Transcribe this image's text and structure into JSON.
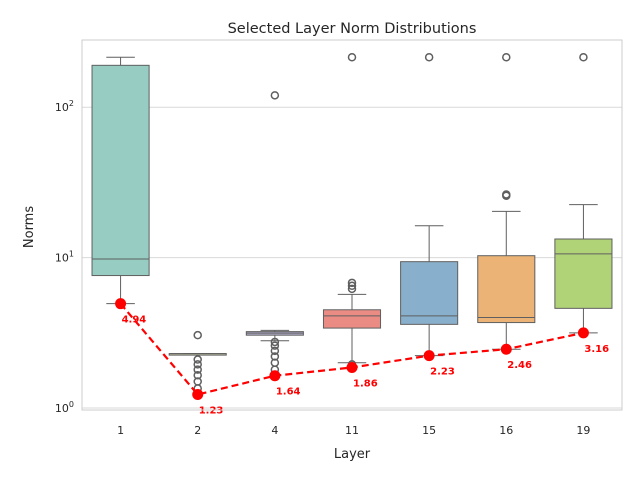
{
  "chart_data": {
    "type": "box",
    "title": "Selected Layer Norm Distributions",
    "xlabel": "Layer",
    "ylabel": "Norms",
    "yscale": "log",
    "ylim": [
      0.97,
      280
    ],
    "grid": true,
    "categories": [
      "1",
      "2",
      "4",
      "11",
      "15",
      "16",
      "19"
    ],
    "y_ticks": [
      {
        "value": 1,
        "label": "10^0"
      },
      {
        "value": 10,
        "label": "10^1"
      },
      {
        "value": 100,
        "label": "10^2"
      }
    ],
    "boxes": [
      {
        "layer": "1",
        "color": "#96ccc2",
        "whisker_low": 4.94,
        "q1": 7.6,
        "median": 9.8,
        "q3": 190,
        "whisker_high": 215,
        "outliers": []
      },
      {
        "layer": "2",
        "color": "#dfdfb2",
        "whisker_low": 2.3,
        "q1": 2.3,
        "median": 2.3,
        "q3": 2.3,
        "whisker_high": 2.3,
        "outliers": [
          1.23,
          1.35,
          1.5,
          1.65,
          1.8,
          1.95,
          2.1,
          3.05
        ]
      },
      {
        "layer": "4",
        "color": "#b5b0cf",
        "whisker_low": 2.8,
        "q1": 3.05,
        "median": 3.15,
        "q3": 3.22,
        "whisker_high": 3.28,
        "outliers": [
          1.64,
          1.8,
          2.0,
          2.2,
          2.4,
          2.6,
          2.75,
          120
        ]
      },
      {
        "layer": "11",
        "color": "#ea8c83",
        "whisker_low": 2.0,
        "q1": 3.4,
        "median": 4.1,
        "q3": 4.5,
        "whisker_high": 5.7,
        "outliers": [
          1.86,
          1.95,
          6.2,
          6.5,
          6.8,
          215
        ]
      },
      {
        "layer": "15",
        "color": "#88afcb",
        "whisker_low": 2.23,
        "q1": 3.6,
        "median": 4.1,
        "q3": 9.4,
        "whisker_high": 16.3,
        "outliers": [
          215
        ]
      },
      {
        "layer": "16",
        "color": "#ebb376",
        "whisker_low": 2.46,
        "q1": 3.7,
        "median": 4.0,
        "q3": 10.3,
        "whisker_high": 20.3,
        "outliers": [
          25.8,
          26.3,
          215
        ]
      },
      {
        "layer": "19",
        "color": "#b0d377",
        "whisker_low": 3.16,
        "q1": 4.6,
        "median": 10.6,
        "q3": 13.3,
        "whisker_high": 22.5,
        "outliers": [
          215
        ]
      }
    ],
    "min_series": {
      "name": "min",
      "color": "#ff0000",
      "values": [
        4.94,
        1.23,
        1.64,
        1.86,
        2.23,
        2.46,
        3.16
      ],
      "labels": [
        "4.94",
        "1.23",
        "1.64",
        "1.86",
        "2.23",
        "2.46",
        "3.16"
      ]
    }
  }
}
